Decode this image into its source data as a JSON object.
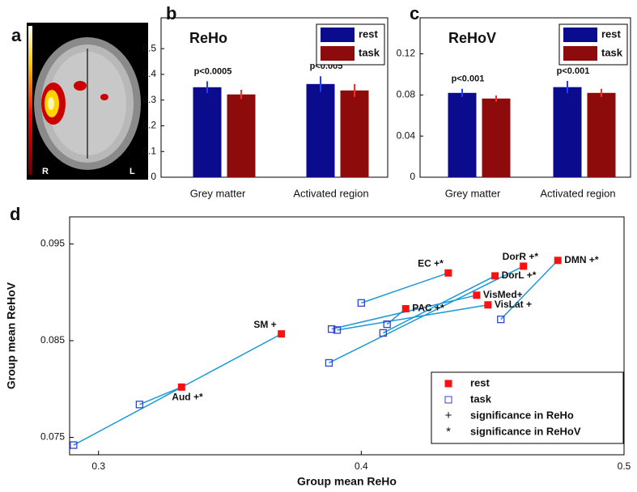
{
  "chart_data": [
    {
      "type": "image",
      "label": "a",
      "annotations": [
        "R",
        "L"
      ]
    },
    {
      "type": "bar",
      "label": "b",
      "title": "ReHo",
      "categories": [
        "Grey matter",
        "Activated region"
      ],
      "annotations": [
        "p<0.0005",
        "p<0.005"
      ],
      "series": [
        {
          "name": "rest",
          "color": "#0b0b8e",
          "error_color": "#1f3dff",
          "values": [
            0.35,
            0.3625
          ],
          "errors": [
            0.023,
            0.03
          ]
        },
        {
          "name": "task",
          "color": "#8e0b0b",
          "error_color": "#ff2a2a",
          "values": [
            0.322,
            0.3375
          ],
          "errors": [
            0.018,
            0.025
          ]
        }
      ],
      "ylim": [
        0,
        0.62
      ],
      "yticks": [
        0,
        0.1,
        0.2,
        0.3,
        0.4,
        0.5
      ],
      "legend": "upper right"
    },
    {
      "type": "bar",
      "label": "c",
      "title": "ReHoV",
      "categories": [
        "Grey matter",
        "Activated region"
      ],
      "annotations": [
        "p<0.001",
        "p<0.001"
      ],
      "series": [
        {
          "name": "rest",
          "color": "#0b0b8e",
          "error_color": "#1f3dff",
          "values": [
            0.082,
            0.0876
          ],
          "errors": [
            0.004,
            0.006
          ]
        },
        {
          "name": "task",
          "color": "#8e0b0b",
          "error_color": "#ff2a2a",
          "values": [
            0.0765,
            0.082
          ],
          "errors": [
            0.003,
            0.004
          ]
        }
      ],
      "ylim": [
        0,
        0.155
      ],
      "yticks": [
        0,
        0.04,
        0.08,
        0.12
      ],
      "legend": "upper right"
    },
    {
      "type": "scatter",
      "label": "d",
      "x_label": "Group mean ReHo",
      "y_label": "Group mean ReHoV",
      "series": [
        {
          "name": "rest",
          "color": "#ff1010",
          "filled": true,
          "x": [
            0.3316,
            0.3696,
            0.4331,
            0.4617,
            0.4509,
            0.4748,
            0.4439,
            0.4169,
            0.4482
          ],
          "values": [
            0.0802,
            0.0857,
            0.092,
            0.0927,
            0.0917,
            0.0933,
            0.0897,
            0.0883,
            0.0887
          ],
          "point_labels": [
            "Aud +*",
            "SM +",
            "EC +*",
            "DorR +*",
            "DorL +*",
            "DMN +*",
            "VisMed+",
            "PAC +*",
            "VisLat +"
          ]
        },
        {
          "name": "task",
          "color": "#3344cc",
          "filled": false,
          "x": [
            0.3156,
            0.2905,
            0.4,
            0.3877,
            0.4083,
            0.4531,
            0.3887,
            0.4098,
            0.3908
          ],
          "values": [
            0.0784,
            0.0742,
            0.0889,
            0.0827,
            0.0858,
            0.0872,
            0.0862,
            0.0867,
            0.0861
          ]
        }
      ],
      "line_color": "#1b98d5",
      "legend_symbols": [
        {
          "symbol": "+",
          "label": "significance in ReHo"
        },
        {
          "symbol": "*",
          "label": "significance in ReHoV"
        }
      ],
      "xlim": [
        0.289,
        0.5
      ],
      "ylim": [
        0.0732,
        0.0978
      ],
      "xticks": [
        0.3,
        0.4,
        0.5
      ],
      "yticks": [
        0.075,
        0.085,
        0.095
      ],
      "legend": "lower right"
    }
  ]
}
